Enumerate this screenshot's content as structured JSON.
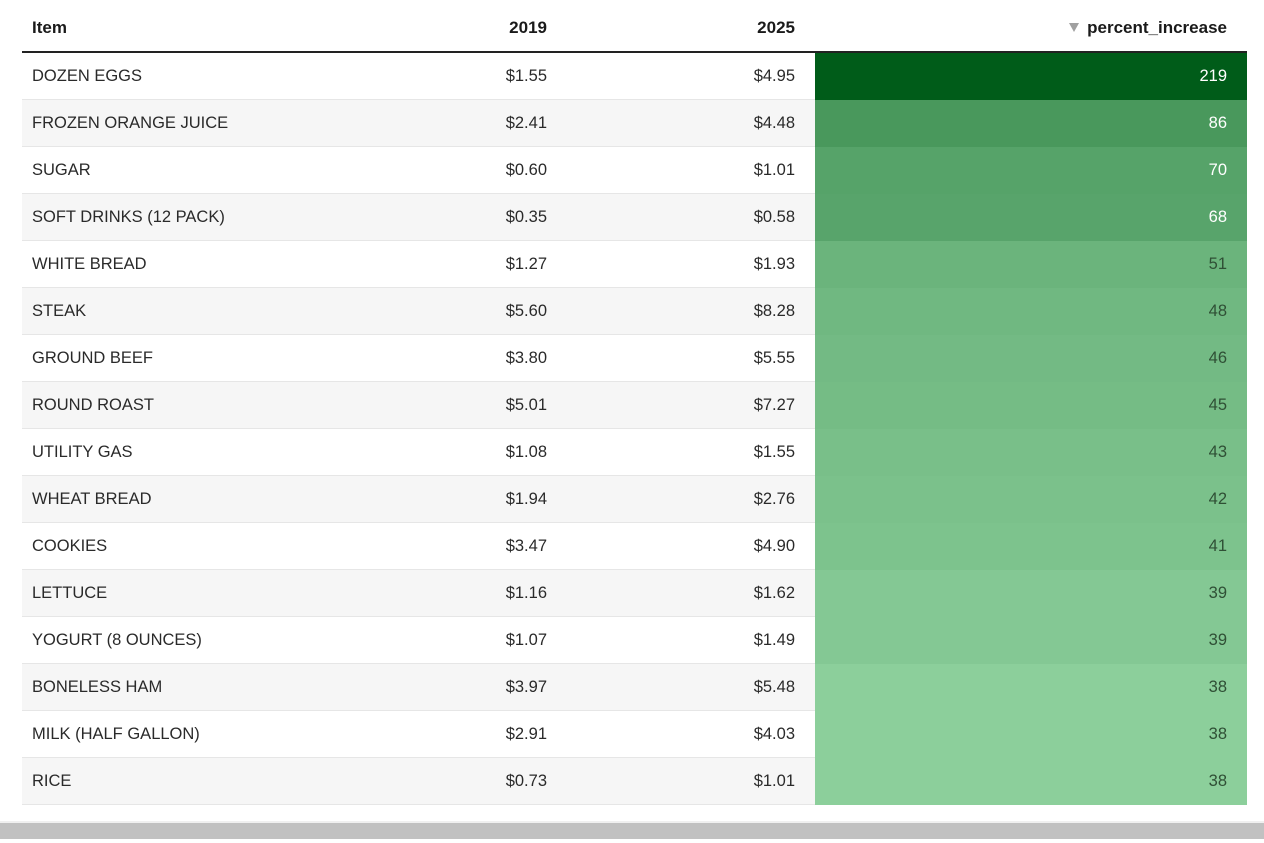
{
  "table": {
    "headers": {
      "item": "Item",
      "y2019": "2019",
      "y2025": "2025",
      "pct": "percent_increase"
    },
    "sort": {
      "column": "percent_increase",
      "direction": "descending",
      "icon": "sort-descending-icon"
    },
    "rows": [
      {
        "item": "DOZEN EGGS",
        "y2019": "$1.55",
        "y2025": "$4.95",
        "pct": 219
      },
      {
        "item": "FROZEN ORANGE JUICE",
        "y2019": "$2.41",
        "y2025": "$4.48",
        "pct": 86
      },
      {
        "item": "SUGAR",
        "y2019": "$0.60",
        "y2025": "$1.01",
        "pct": 70
      },
      {
        "item": "SOFT DRINKS (12 PACK)",
        "y2019": "$0.35",
        "y2025": "$0.58",
        "pct": 68
      },
      {
        "item": "WHITE BREAD",
        "y2019": "$1.27",
        "y2025": "$1.93",
        "pct": 51
      },
      {
        "item": "STEAK",
        "y2019": "$5.60",
        "y2025": "$8.28",
        "pct": 48
      },
      {
        "item": "GROUND BEEF",
        "y2019": "$3.80",
        "y2025": "$5.55",
        "pct": 46
      },
      {
        "item": "ROUND ROAST",
        "y2019": "$5.01",
        "y2025": "$7.27",
        "pct": 45
      },
      {
        "item": "UTILITY GAS",
        "y2019": "$1.08",
        "y2025": "$1.55",
        "pct": 43
      },
      {
        "item": "WHEAT BREAD",
        "y2019": "$1.94",
        "y2025": "$2.76",
        "pct": 42
      },
      {
        "item": "COOKIES",
        "y2019": "$3.47",
        "y2025": "$4.90",
        "pct": 41
      },
      {
        "item": "LETTUCE",
        "y2019": "$1.16",
        "y2025": "$1.62",
        "pct": 39
      },
      {
        "item": "YOGURT (8 OUNCES)",
        "y2019": "$1.07",
        "y2025": "$1.49",
        "pct": 39
      },
      {
        "item": "BONELESS HAM",
        "y2019": "$3.97",
        "y2025": "$5.48",
        "pct": 38
      },
      {
        "item": "MILK (HALF GALLON)",
        "y2019": "$2.91",
        "y2025": "$4.03",
        "pct": 38
      },
      {
        "item": "RICE",
        "y2019": "$0.73",
        "y2025": "$1.01",
        "pct": 38
      }
    ]
  },
  "colors": {
    "heat_dark": "#005c19",
    "heat_light": "#8ccf9b",
    "text_on_dark": "#ffffff",
    "text_on_light": "#2f4f35"
  }
}
